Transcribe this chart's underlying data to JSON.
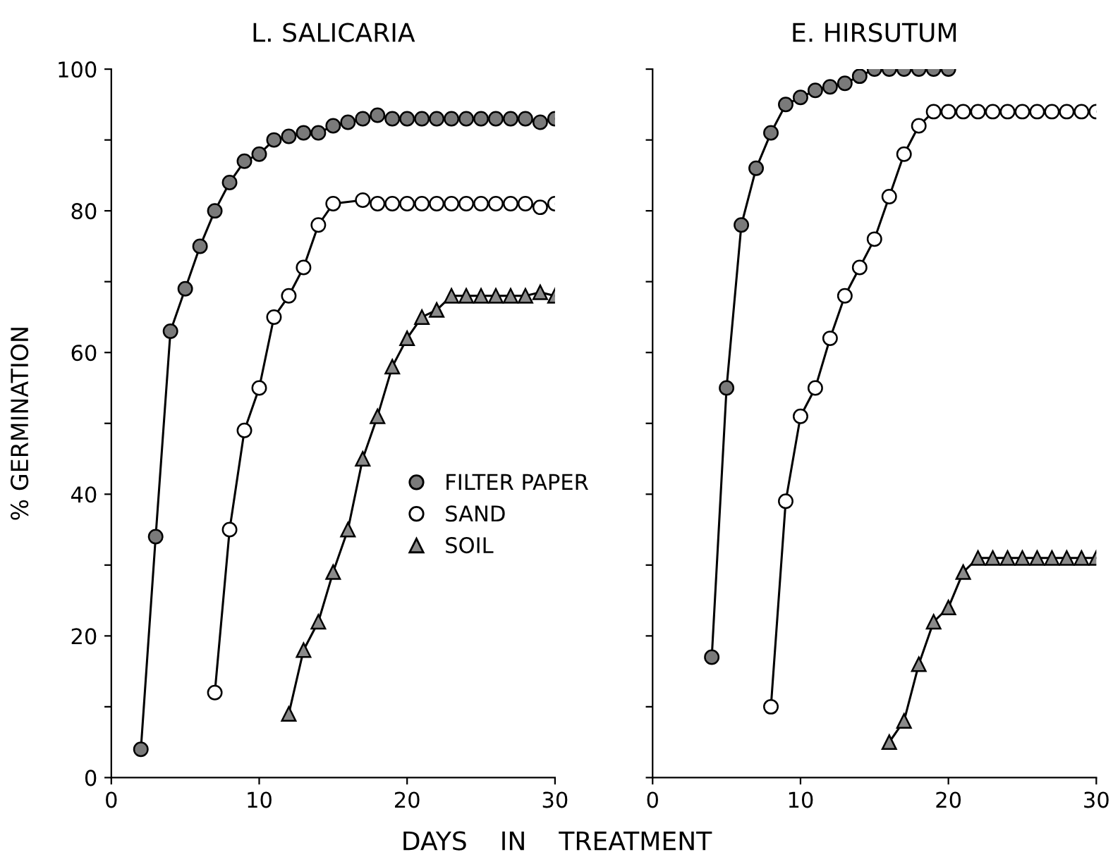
{
  "chart_data": [
    {
      "type": "line",
      "title": "L. SALICARIA",
      "xlabel": "DAYS    IN    TREATMENT",
      "ylabel": "% GERMINATION",
      "xlim": [
        0,
        30
      ],
      "xticks": [
        0,
        10,
        20,
        30
      ],
      "ylim": [
        0,
        100
      ],
      "yticks": [
        0,
        {
          "value": 10,
          "label": null
        },
        20,
        {
          "value": 30,
          "label": null
        },
        40,
        {
          "value": 50,
          "label": null
        },
        60,
        {
          "value": 70,
          "label": null
        },
        80,
        {
          "value": 90,
          "label": null
        },
        100
      ],
      "grid": false,
      "legend": "right",
      "line_style": "solid",
      "series": [
        {
          "name": "FILTER PAPER",
          "color": "#7a7a7a",
          "marker": "circle",
          "x": [
            2,
            3,
            4,
            5,
            6,
            7,
            8,
            9,
            10,
            11,
            12,
            13,
            14,
            15,
            16,
            17,
            18,
            19,
            20,
            21,
            22,
            23,
            24,
            25,
            26,
            27,
            28,
            29,
            30
          ],
          "values": [
            4,
            34,
            63,
            69,
            75,
            80,
            84,
            87,
            88,
            90,
            90.5,
            91,
            91,
            92,
            92.5,
            93,
            93.5,
            93,
            93,
            93,
            93,
            93,
            93,
            93,
            93,
            93,
            93,
            92.5,
            93
          ]
        },
        {
          "name": "SAND",
          "color": "#ffffff",
          "marker": "circle",
          "x": [
            7,
            8,
            9,
            10,
            11,
            12,
            13,
            14,
            15,
            17,
            18,
            19,
            20,
            21,
            22,
            23,
            24,
            25,
            26,
            27,
            28,
            29,
            30
          ],
          "values": [
            12,
            35,
            49,
            55,
            65,
            68,
            72,
            78,
            81,
            81.5,
            81,
            81,
            81,
            81,
            81,
            81,
            81,
            81,
            81,
            81,
            81,
            80.5,
            81
          ]
        },
        {
          "name": "SOIL",
          "color": "#8a8a8a",
          "marker": "triangle",
          "x": [
            12,
            13,
            14,
            15,
            16,
            17,
            18,
            19,
            20,
            21,
            22,
            23,
            24,
            25,
            26,
            27,
            28,
            29,
            30
          ],
          "values": [
            9,
            18,
            22,
            29,
            35,
            45,
            51,
            58,
            62,
            65,
            66,
            68,
            68,
            68,
            68,
            68,
            68,
            68.5,
            68
          ]
        }
      ]
    },
    {
      "type": "line",
      "title": "E. HIRSUTUM",
      "xlim": [
        0,
        30
      ],
      "xticks": [
        0,
        10,
        20,
        30
      ],
      "ylim": [
        0,
        100
      ],
      "yticks": [
        0,
        10,
        20,
        30,
        40,
        50,
        60,
        70,
        80,
        90,
        100
      ],
      "tick_labels": "x",
      "grid": false,
      "line_style": "solid",
      "series": [
        {
          "color": "#7a7a7a",
          "marker": "circle",
          "x": [
            4,
            5,
            6,
            7,
            8,
            9,
            10,
            11,
            12,
            13,
            14,
            15,
            16,
            17,
            18,
            19,
            20
          ],
          "values": [
            17,
            55,
            78,
            86,
            91,
            95,
            96,
            97,
            97.5,
            98,
            99,
            100,
            100,
            100,
            100,
            100,
            100
          ]
        },
        {
          "color": "#ffffff",
          "marker": "circle",
          "x": [
            8,
            9,
            10,
            11,
            12,
            13,
            14,
            15,
            16,
            17,
            18,
            19,
            20,
            21,
            22,
            23,
            24,
            25,
            26,
            27,
            28,
            29,
            30
          ],
          "values": [
            10,
            39,
            51,
            55,
            62,
            68,
            72,
            76,
            82,
            88,
            92,
            94,
            94,
            94,
            94,
            94,
            94,
            94,
            94,
            94,
            94,
            94,
            94
          ]
        },
        {
          "color": "#8a8a8a",
          "marker": "triangle",
          "x": [
            16,
            17,
            18,
            19,
            20,
            21,
            22,
            23,
            24,
            25,
            26,
            27,
            28,
            29,
            30
          ],
          "values": [
            5,
            8,
            16,
            22,
            24,
            29,
            31,
            31,
            31,
            31,
            31,
            31,
            31,
            31,
            31
          ]
        }
      ]
    }
  ]
}
